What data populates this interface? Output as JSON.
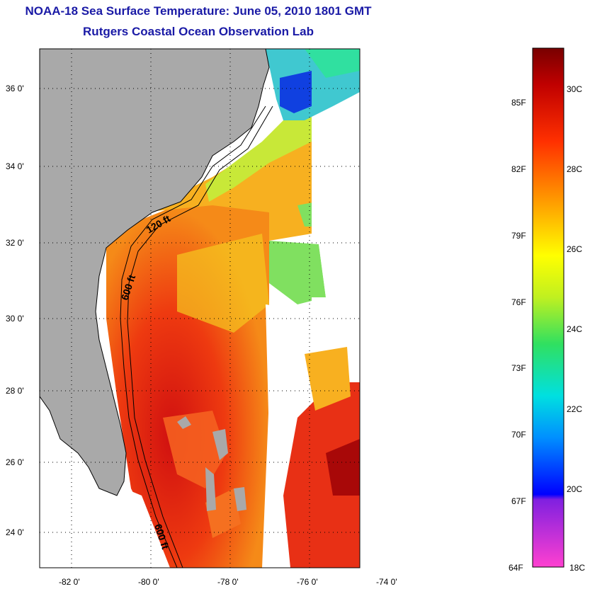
{
  "header": {
    "title": "NOAA-18 Sea Surface Temperature:  June 05, 2010 1801 GMT",
    "subtitle": "Rutgers Coastal Ocean Observation Lab"
  },
  "map": {
    "lat_ticks": [
      "36 0'",
      "34 0'",
      "32 0'",
      "30 0'",
      "28 0'",
      "26 0'",
      "24 0'"
    ],
    "lon_ticks": [
      "-82 0'",
      "-80 0'",
      "-78 0'",
      "-76 0'",
      "-74 0'"
    ],
    "contour_labels": [
      "120 ft",
      "600 ft",
      "600 ft"
    ],
    "colors": {
      "land": "#a9a9a9",
      "warm": "#e02010",
      "cold": "#1030e0"
    }
  },
  "colorbar": {
    "fahrenheit_labels": [
      "85F",
      "82F",
      "79F",
      "76F",
      "73F",
      "70F",
      "67F",
      "64F"
    ],
    "celsius_labels": [
      "30C",
      "28C",
      "26C",
      "24C",
      "22C",
      "20C",
      "18C"
    ]
  }
}
